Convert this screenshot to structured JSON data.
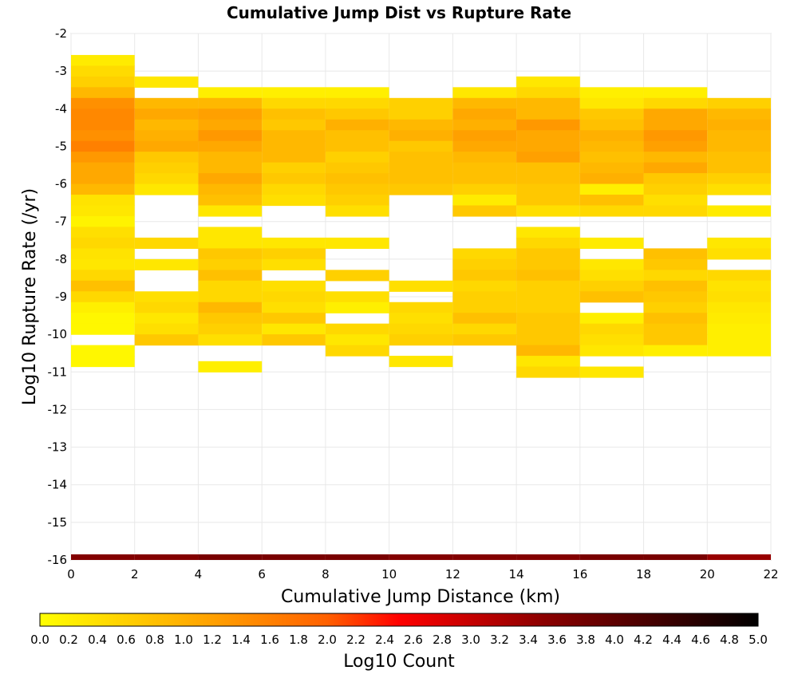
{
  "chart_data": {
    "type": "heatmap",
    "title": "Cumulative Jump Dist vs Rupture Rate",
    "xlabel": "Cumulative Jump Distance (km)",
    "ylabel": "Log10 Rupture Rate (/yr)",
    "xlim": [
      0,
      22
    ],
    "ylim": [
      -16,
      -2
    ],
    "x_ticks": [
      0,
      2,
      4,
      6,
      8,
      10,
      12,
      14,
      16,
      18,
      20,
      22
    ],
    "y_ticks": [
      -2,
      -3,
      -4,
      -5,
      -6,
      -7,
      -8,
      -9,
      -10,
      -11,
      -12,
      -13,
      -14,
      -15,
      -16
    ],
    "x_bin_width": 2,
    "y_bin_height": 0.2857,
    "grid": true,
    "colorbar": {
      "label": "Log10 Count",
      "min": 0.0,
      "max": 5.0,
      "tick_labels": [
        "0.0",
        "0.2",
        "0.4",
        "0.6",
        "0.8",
        "1.0",
        "1.2",
        "1.4",
        "1.6",
        "1.8",
        "2.0",
        "2.2",
        "2.4",
        "2.6",
        "2.8",
        "3.0",
        "3.2",
        "3.4",
        "3.6",
        "3.8",
        "4.0",
        "4.2",
        "4.4",
        "4.6",
        "4.8",
        "5.0"
      ],
      "stops": [
        [
          0.0,
          "#ffff00"
        ],
        [
          0.2,
          "#ffb000"
        ],
        [
          0.4,
          "#ff6000"
        ],
        [
          0.5,
          "#ff0000"
        ],
        [
          0.7,
          "#8c0000"
        ],
        [
          1.0,
          "#000000"
        ]
      ]
    },
    "series": [
      {
        "x": 0,
        "cells": [
          [
            -2.714,
            0.25
          ],
          [
            -3.0,
            0.45
          ],
          [
            -3.286,
            0.6
          ],
          [
            -3.571,
            0.9
          ],
          [
            -3.857,
            1.4
          ],
          [
            -4.143,
            1.5
          ],
          [
            -4.429,
            1.5
          ],
          [
            -4.714,
            1.4
          ],
          [
            -5.0,
            1.6
          ],
          [
            -5.286,
            1.3
          ],
          [
            -5.571,
            1.1
          ],
          [
            -5.857,
            1.1
          ],
          [
            -6.143,
            0.9
          ],
          [
            -6.429,
            0.35
          ],
          [
            -6.714,
            0.3
          ],
          [
            -7.0,
            0.15
          ],
          [
            -7.286,
            0.4
          ],
          [
            -7.571,
            0.5
          ],
          [
            -7.857,
            0.35
          ],
          [
            -8.143,
            0.3
          ],
          [
            -8.429,
            0.5
          ],
          [
            -8.714,
            0.8
          ],
          [
            -9.0,
            0.5
          ],
          [
            -9.286,
            0.2
          ],
          [
            -9.571,
            0.1
          ],
          [
            -9.857,
            0.1
          ],
          [
            -10.429,
            0.1
          ],
          [
            -10.714,
            0.1
          ]
        ]
      },
      {
        "x": 2,
        "cells": [
          [
            -3.286,
            0.3
          ],
          [
            -3.857,
            0.9
          ],
          [
            -4.143,
            1.1
          ],
          [
            -4.429,
            0.9
          ],
          [
            -4.714,
            1.0
          ],
          [
            -5.0,
            1.1
          ],
          [
            -5.286,
            0.7
          ],
          [
            -5.571,
            0.6
          ],
          [
            -5.857,
            0.5
          ],
          [
            -6.143,
            0.3
          ],
          [
            -7.571,
            0.5
          ],
          [
            -8.143,
            0.3
          ],
          [
            -9.0,
            0.4
          ],
          [
            -9.286,
            0.5
          ],
          [
            -9.571,
            0.3
          ],
          [
            -9.857,
            0.4
          ],
          [
            -10.143,
            0.7
          ]
        ]
      },
      {
        "x": 4,
        "cells": [
          [
            -3.571,
            0.2
          ],
          [
            -3.857,
            0.9
          ],
          [
            -4.143,
            1.2
          ],
          [
            -4.429,
            1.1
          ],
          [
            -4.714,
            1.3
          ],
          [
            -5.0,
            1.1
          ],
          [
            -5.286,
            0.9
          ],
          [
            -5.571,
            0.9
          ],
          [
            -5.857,
            1.1
          ],
          [
            -6.143,
            0.9
          ],
          [
            -6.429,
            0.8
          ],
          [
            -6.714,
            0.3
          ],
          [
            -7.286,
            0.3
          ],
          [
            -7.571,
            0.3
          ],
          [
            -7.857,
            0.7
          ],
          [
            -8.143,
            0.6
          ],
          [
            -8.429,
            0.8
          ],
          [
            -8.714,
            0.5
          ],
          [
            -9.0,
            0.5
          ],
          [
            -9.286,
            0.9
          ],
          [
            -9.571,
            0.7
          ],
          [
            -9.857,
            0.6
          ],
          [
            -10.143,
            0.4
          ],
          [
            -10.857,
            0.2
          ]
        ]
      },
      {
        "x": 6,
        "cells": [
          [
            -3.571,
            0.2
          ],
          [
            -3.857,
            0.5
          ],
          [
            -4.143,
            0.8
          ],
          [
            -4.429,
            0.7
          ],
          [
            -4.714,
            0.9
          ],
          [
            -5.0,
            0.9
          ],
          [
            -5.286,
            0.9
          ],
          [
            -5.571,
            0.6
          ],
          [
            -5.857,
            0.7
          ],
          [
            -6.143,
            0.5
          ],
          [
            -6.429,
            0.4
          ],
          [
            -7.571,
            0.3
          ],
          [
            -7.857,
            0.6
          ],
          [
            -8.143,
            0.4
          ],
          [
            -8.714,
            0.4
          ],
          [
            -9.0,
            0.5
          ],
          [
            -9.286,
            0.4
          ],
          [
            -9.571,
            0.7
          ],
          [
            -9.857,
            0.3
          ],
          [
            -10.143,
            0.7
          ]
        ]
      },
      {
        "x": 8,
        "cells": [
          [
            -3.571,
            0.2
          ],
          [
            -3.857,
            0.5
          ],
          [
            -4.143,
            0.7
          ],
          [
            -4.429,
            1.0
          ],
          [
            -4.714,
            0.8
          ],
          [
            -5.0,
            0.8
          ],
          [
            -5.286,
            0.6
          ],
          [
            -5.571,
            0.7
          ],
          [
            -5.857,
            0.8
          ],
          [
            -6.143,
            0.7
          ],
          [
            -6.429,
            0.6
          ],
          [
            -6.714,
            0.4
          ],
          [
            -7.571,
            0.3
          ],
          [
            -8.429,
            0.6
          ],
          [
            -9.0,
            0.4
          ],
          [
            -9.286,
            0.2
          ],
          [
            -9.857,
            0.5
          ],
          [
            -10.143,
            0.3
          ],
          [
            -10.429,
            0.5
          ]
        ]
      },
      {
        "x": 10,
        "cells": [
          [
            -3.857,
            0.6
          ],
          [
            -4.143,
            0.6
          ],
          [
            -4.429,
            0.9
          ],
          [
            -4.714,
            1.0
          ],
          [
            -5.0,
            0.7
          ],
          [
            -5.286,
            0.8
          ],
          [
            -5.571,
            0.8
          ],
          [
            -5.857,
            0.8
          ],
          [
            -6.143,
            0.7
          ],
          [
            -8.714,
            0.4
          ],
          [
            -9.286,
            0.5
          ],
          [
            -9.571,
            0.4
          ],
          [
            -9.857,
            0.5
          ],
          [
            -10.143,
            0.6
          ],
          [
            -10.714,
            0.3
          ]
        ]
      },
      {
        "x": 12,
        "cells": [
          [
            -3.571,
            0.3
          ],
          [
            -3.857,
            0.9
          ],
          [
            -4.143,
            1.1
          ],
          [
            -4.429,
            1.0
          ],
          [
            -4.714,
            1.2
          ],
          [
            -5.0,
            1.1
          ],
          [
            -5.286,
            0.9
          ],
          [
            -5.571,
            0.8
          ],
          [
            -5.857,
            0.8
          ],
          [
            -6.143,
            0.6
          ],
          [
            -6.429,
            0.25
          ],
          [
            -6.714,
            0.7
          ],
          [
            -7.857,
            0.5
          ],
          [
            -8.143,
            0.6
          ],
          [
            -8.429,
            0.7
          ],
          [
            -8.714,
            0.5
          ],
          [
            -9.0,
            0.6
          ],
          [
            -9.286,
            0.6
          ],
          [
            -9.571,
            0.8
          ],
          [
            -9.857,
            0.5
          ],
          [
            -10.143,
            0.7
          ]
        ]
      },
      {
        "x": 14,
        "cells": [
          [
            -3.286,
            0.3
          ],
          [
            -3.571,
            0.5
          ],
          [
            -3.857,
            0.9
          ],
          [
            -4.143,
            0.9
          ],
          [
            -4.429,
            1.3
          ],
          [
            -4.714,
            1.1
          ],
          [
            -5.0,
            1.1
          ],
          [
            -5.286,
            1.2
          ],
          [
            -5.571,
            0.8
          ],
          [
            -5.857,
            0.8
          ],
          [
            -6.143,
            0.7
          ],
          [
            -6.429,
            0.7
          ],
          [
            -6.714,
            0.4
          ],
          [
            -7.286,
            0.3
          ],
          [
            -7.571,
            0.5
          ],
          [
            -7.857,
            0.7
          ],
          [
            -8.143,
            0.7
          ],
          [
            -8.429,
            0.8
          ],
          [
            -8.714,
            0.6
          ],
          [
            -9.0,
            0.6
          ],
          [
            -9.286,
            0.6
          ],
          [
            -9.571,
            0.7
          ],
          [
            -9.857,
            0.7
          ],
          [
            -10.143,
            0.7
          ],
          [
            -10.429,
            0.9
          ],
          [
            -10.714,
            0.3
          ],
          [
            -11.0,
            0.5
          ]
        ]
      },
      {
        "x": 16,
        "cells": [
          [
            -3.571,
            0.2
          ],
          [
            -3.857,
            0.3
          ],
          [
            -4.143,
            0.7
          ],
          [
            -4.429,
            0.8
          ],
          [
            -4.714,
            1.0
          ],
          [
            -5.0,
            0.9
          ],
          [
            -5.286,
            0.8
          ],
          [
            -5.571,
            0.9
          ],
          [
            -5.857,
            1.0
          ],
          [
            -6.143,
            0.2
          ],
          [
            -6.429,
            0.8
          ],
          [
            -6.714,
            0.5
          ],
          [
            -7.571,
            0.25
          ],
          [
            -8.143,
            0.3
          ],
          [
            -8.429,
            0.4
          ],
          [
            -8.714,
            0.6
          ],
          [
            -9.0,
            0.8
          ],
          [
            -9.571,
            0.2
          ],
          [
            -9.857,
            0.5
          ],
          [
            -10.143,
            0.4
          ],
          [
            -10.429,
            0.3
          ],
          [
            -11.0,
            0.3
          ]
        ]
      },
      {
        "x": 18,
        "cells": [
          [
            -3.571,
            0.2
          ],
          [
            -3.857,
            0.5
          ],
          [
            -4.143,
            1.1
          ],
          [
            -4.429,
            1.1
          ],
          [
            -4.714,
            1.3
          ],
          [
            -5.0,
            1.2
          ],
          [
            -5.286,
            0.9
          ],
          [
            -5.571,
            1.1
          ],
          [
            -5.857,
            0.7
          ],
          [
            -6.143,
            0.6
          ],
          [
            -6.429,
            0.4
          ],
          [
            -6.714,
            0.5
          ],
          [
            -7.857,
            0.8
          ],
          [
            -8.143,
            0.7
          ],
          [
            -8.429,
            0.5
          ],
          [
            -8.714,
            0.8
          ],
          [
            -9.0,
            0.7
          ],
          [
            -9.286,
            0.6
          ],
          [
            -9.571,
            0.8
          ],
          [
            -9.857,
            0.7
          ],
          [
            -10.143,
            0.7
          ],
          [
            -10.429,
            0.2
          ]
        ]
      },
      {
        "x": 20,
        "cells": [
          [
            -3.857,
            0.6
          ],
          [
            -4.143,
            0.9
          ],
          [
            -4.429,
            1.0
          ],
          [
            -4.714,
            0.9
          ],
          [
            -5.0,
            0.9
          ],
          [
            -5.286,
            0.8
          ],
          [
            -5.571,
            0.8
          ],
          [
            -5.857,
            0.6
          ],
          [
            -6.143,
            0.4
          ],
          [
            -6.714,
            0.25
          ],
          [
            -7.571,
            0.3
          ],
          [
            -7.857,
            0.4
          ],
          [
            -8.429,
            0.5
          ],
          [
            -8.714,
            0.35
          ],
          [
            -9.0,
            0.4
          ],
          [
            -9.286,
            0.3
          ],
          [
            -9.571,
            0.25
          ],
          [
            -9.857,
            0.2
          ],
          [
            -10.143,
            0.2
          ],
          [
            -10.429,
            0.2
          ]
        ]
      }
    ],
    "bottom_band": {
      "y": -16,
      "values": [
        3.6,
        3.6,
        3.7,
        3.7,
        3.7,
        3.6,
        3.6,
        3.6,
        3.7,
        3.7,
        3.4
      ]
    }
  }
}
